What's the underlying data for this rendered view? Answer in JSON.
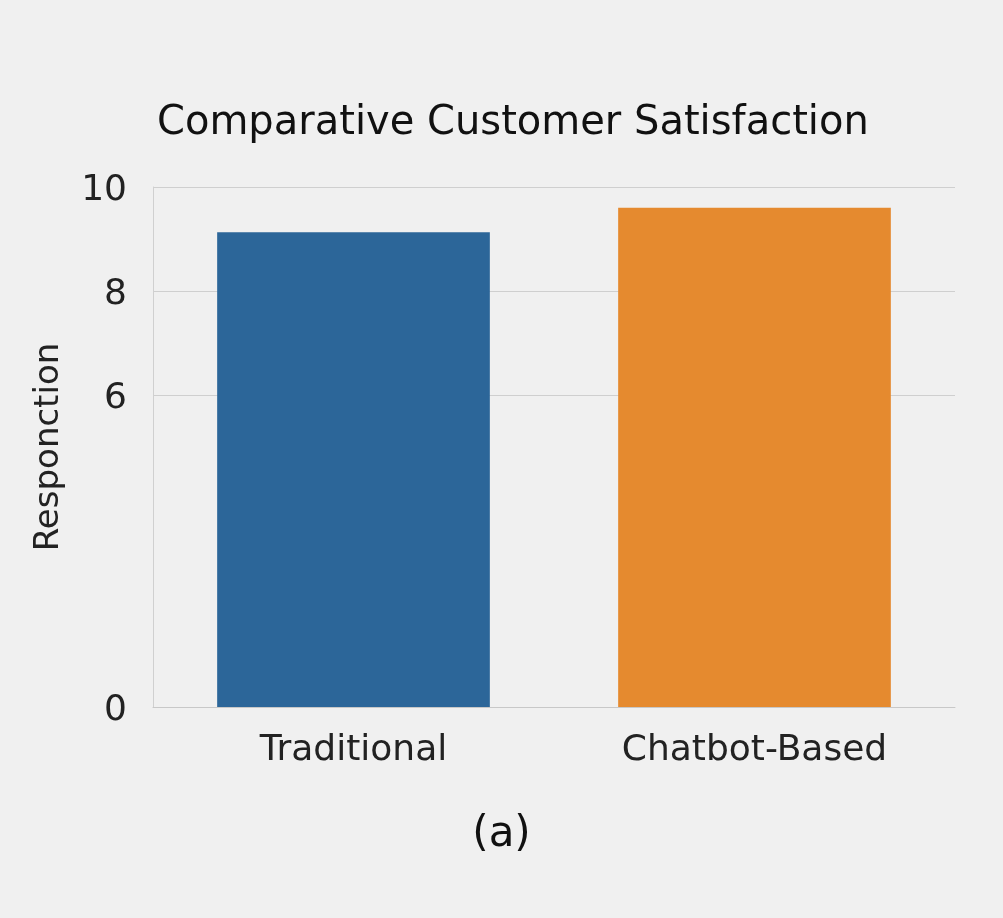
{
  "chart_data": {
    "type": "bar",
    "title": "Comparative Customer Satisfaction",
    "ylabel": "Responction",
    "categories": [
      "Traditional",
      "Chatbot-Based"
    ],
    "values": [
      9.13,
      9.6
    ],
    "colors": [
      "#2c6699",
      "#e58a2f"
    ],
    "ylim": [
      0,
      10
    ],
    "yticks": [
      0,
      6,
      8,
      10
    ],
    "grid": "y",
    "annotations": [
      "(a)"
    ]
  }
}
